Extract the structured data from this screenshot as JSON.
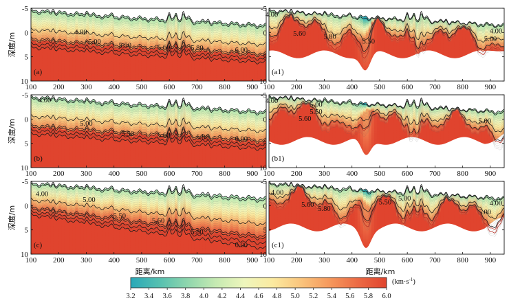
{
  "chart_data": {
    "type": "heatmap",
    "x_ticks": [
      100,
      200,
      300,
      400,
      500,
      600,
      700,
      800,
      900
    ],
    "y_ticks": [
      -5,
      0,
      5,
      10
    ],
    "xlim": [
      100,
      950
    ],
    "ylim": [
      -5,
      10
    ],
    "xlabel": "距离/km",
    "ylabel": "深度/m",
    "panels": [
      {
        "id": "a",
        "label": "(a)",
        "kind": "model",
        "contours": [
          {
            "label": "4.00",
            "value": 4.0,
            "x": 280,
            "y": -0.2
          },
          {
            "label": "5.00",
            "value": 5.0,
            "x": 330,
            "y": 1.8
          },
          {
            "label": "5.50",
            "value": 5.5,
            "x": 440,
            "y": 2.6
          },
          {
            "label": "5.60",
            "value": 5.6,
            "x": 580,
            "y": 2.9
          },
          {
            "label": "5.80",
            "value": 5.8,
            "x": 700,
            "y": 3.1
          },
          {
            "label": "6.00",
            "value": 6.0,
            "x": 860,
            "y": 3.5
          }
        ]
      },
      {
        "id": "a1",
        "label": "(a1)",
        "kind": "inversion",
        "contours": [
          {
            "label": "4.00",
            "value": 4.0,
            "x": 110,
            "y": -3.8
          },
          {
            "label": "5.60",
            "value": 5.6,
            "x": 210,
            "y": 0.1
          },
          {
            "label": "5.80",
            "value": 5.8,
            "x": 320,
            "y": 0.7
          },
          {
            "label": "5.50",
            "value": 5.5,
            "x": 460,
            "y": 1.7
          },
          {
            "label": "4.00",
            "value": 4.0,
            "x": 920,
            "y": -0.4
          },
          {
            "label": "5.00",
            "value": 5.0,
            "x": 900,
            "y": 1.2
          }
        ]
      },
      {
        "id": "b",
        "label": "(b)",
        "kind": "model",
        "contours": [
          {
            "label": "4.00",
            "value": 4.0,
            "x": 150,
            "y": -4.0
          },
          {
            "label": "5.00",
            "value": 5.0,
            "x": 300,
            "y": 0.8
          },
          {
            "label": "5.50",
            "value": 5.5,
            "x": 450,
            "y": 2.9
          },
          {
            "label": "5.60",
            "value": 5.6,
            "x": 580,
            "y": 3.2
          },
          {
            "label": "5.80",
            "value": 5.8,
            "x": 720,
            "y": 3.6
          },
          {
            "label": "6.00",
            "value": 6.0,
            "x": 860,
            "y": 4.0
          }
        ]
      },
      {
        "id": "b1",
        "label": "(b1)",
        "kind": "inversion",
        "contours": [
          {
            "label": "4.00",
            "value": 4.0,
            "x": 110,
            "y": -3.9
          },
          {
            "label": "5.00",
            "value": 5.0,
            "x": 270,
            "y": -3.1
          },
          {
            "label": "5.50",
            "value": 5.5,
            "x": 270,
            "y": -1.6
          },
          {
            "label": "5.60",
            "value": 5.6,
            "x": 230,
            "y": -0.2
          },
          {
            "label": "5.00",
            "value": 5.0,
            "x": 880,
            "y": 0.3
          }
        ]
      },
      {
        "id": "c",
        "label": "(c)",
        "kind": "model",
        "contours": [
          {
            "label": "4.00",
            "value": 4.0,
            "x": 140,
            "y": -2.5
          },
          {
            "label": "5.00",
            "value": 5.0,
            "x": 310,
            "y": -1.3
          },
          {
            "label": "5.50",
            "value": 5.5,
            "x": 420,
            "y": 2.0
          },
          {
            "label": "5.60",
            "value": 5.6,
            "x": 560,
            "y": 3.0
          },
          {
            "label": "5.80",
            "value": 5.8,
            "x": 700,
            "y": 5.3
          },
          {
            "label": "6.00",
            "value": 6.0,
            "x": 860,
            "y": 8.0
          }
        ]
      },
      {
        "id": "c1",
        "label": "(c1)",
        "kind": "inversion",
        "contours": [
          {
            "label": "4.00",
            "value": 4.0,
            "x": 130,
            "y": -2.8
          },
          {
            "label": "5.60",
            "value": 5.6,
            "x": 240,
            "y": -0.3
          },
          {
            "label": "5.80",
            "value": 5.8,
            "x": 300,
            "y": 0.5
          },
          {
            "label": "5.50",
            "value": 5.5,
            "x": 520,
            "y": -0.8
          },
          {
            "label": "5.00",
            "value": 5.0,
            "x": 590,
            "y": -1.6
          },
          {
            "label": "4.00",
            "value": 4.0,
            "x": 920,
            "y": -0.6
          },
          {
            "label": "5.00",
            "value": 5.0,
            "x": 880,
            "y": 1.2
          }
        ]
      }
    ],
    "colorbar": {
      "unit": "(km·s",
      "unit_sup": "-1",
      "unit_close": ")",
      "ticks": [
        "3.2",
        "3.4",
        "3.6",
        "3.8",
        "4.0",
        "4.2",
        "4.4",
        "4.6",
        "4.8",
        "5.0",
        "5.2",
        "5.4",
        "5.6",
        "5.8",
        "6.0"
      ],
      "range": [
        3.2,
        6.0
      ],
      "colors": [
        "#2aa8b8",
        "#55c0b0",
        "#8fd6ad",
        "#c6eab2",
        "#eef6bc",
        "#fbeaa0",
        "#fac47c",
        "#f5985c",
        "#ec6a44",
        "#e0442e"
      ]
    },
    "grid": false
  }
}
